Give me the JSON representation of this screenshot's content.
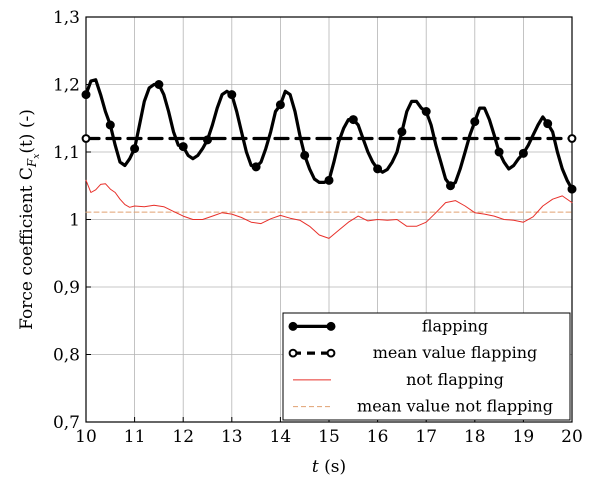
{
  "chart_data": {
    "type": "line",
    "xlabel": "t (s)",
    "ylabel": "Force coefficient C_{F_x}(t) (-)",
    "ylabel_parts": {
      "main": "Force coefficient C",
      "sub": "F",
      "subsub": "x",
      "tail": "(t) (-)"
    },
    "xlabel_parts": {
      "var": "t",
      "unit": " (s)"
    },
    "xlim": [
      10,
      20
    ],
    "ylim": [
      0.7,
      1.3
    ],
    "x_ticks": [
      10,
      11,
      12,
      13,
      14,
      15,
      16,
      17,
      18,
      19,
      20
    ],
    "x_tick_labels": [
      "10",
      "11",
      "12",
      "13",
      "14",
      "15",
      "16",
      "17",
      "18",
      "19",
      "20"
    ],
    "y_ticks": [
      0.7,
      0.8,
      0.9,
      1.0,
      1.1,
      1.2,
      1.3
    ],
    "y_tick_labels": [
      "0,7",
      "0,8",
      "0,9",
      "1",
      "1,1",
      "1,2",
      "1,3"
    ],
    "grid": true,
    "legend_position": "bottom-right",
    "series": [
      {
        "name": "flapping",
        "color": "#000000",
        "style": "solid-thick-filled-markers",
        "x": [
          10.0,
          10.1,
          10.2,
          10.3,
          10.4,
          10.5,
          10.6,
          10.7,
          10.8,
          10.9,
          11.0,
          11.1,
          11.2,
          11.3,
          11.4,
          11.5,
          11.6,
          11.7,
          11.8,
          11.9,
          12.0,
          12.1,
          12.2,
          12.3,
          12.4,
          12.5,
          12.6,
          12.7,
          12.8,
          12.9,
          13.0,
          13.1,
          13.2,
          13.3,
          13.4,
          13.5,
          13.6,
          13.7,
          13.8,
          13.9,
          14.0,
          14.1,
          14.2,
          14.3,
          14.4,
          14.5,
          14.6,
          14.7,
          14.8,
          14.9,
          15.0,
          15.1,
          15.2,
          15.3,
          15.4,
          15.5,
          15.6,
          15.7,
          15.8,
          15.9,
          16.0,
          16.1,
          16.2,
          16.3,
          16.4,
          16.5,
          16.6,
          16.7,
          16.8,
          16.9,
          17.0,
          17.1,
          17.2,
          17.3,
          17.4,
          17.5,
          17.6,
          17.7,
          17.8,
          17.9,
          18.0,
          18.1,
          18.2,
          18.3,
          18.4,
          18.5,
          18.6,
          18.7,
          18.8,
          18.9,
          19.0,
          19.1,
          19.2,
          19.3,
          19.4,
          19.5,
          19.6,
          19.7,
          19.8,
          19.9,
          20.0
        ],
        "y": [
          1.185,
          1.205,
          1.207,
          1.185,
          1.16,
          1.14,
          1.11,
          1.085,
          1.08,
          1.09,
          1.105,
          1.14,
          1.175,
          1.195,
          1.2,
          1.2,
          1.185,
          1.16,
          1.13,
          1.11,
          1.108,
          1.095,
          1.09,
          1.095,
          1.105,
          1.118,
          1.14,
          1.165,
          1.185,
          1.19,
          1.185,
          1.16,
          1.13,
          1.1,
          1.08,
          1.078,
          1.085,
          1.105,
          1.13,
          1.16,
          1.17,
          1.19,
          1.185,
          1.16,
          1.125,
          1.095,
          1.075,
          1.06,
          1.055,
          1.055,
          1.058,
          1.085,
          1.115,
          1.135,
          1.148,
          1.148,
          1.14,
          1.12,
          1.1,
          1.085,
          1.075,
          1.07,
          1.074,
          1.085,
          1.1,
          1.13,
          1.16,
          1.175,
          1.175,
          1.165,
          1.16,
          1.14,
          1.11,
          1.085,
          1.06,
          1.05,
          1.055,
          1.075,
          1.1,
          1.125,
          1.145,
          1.165,
          1.165,
          1.148,
          1.125,
          1.1,
          1.085,
          1.075,
          1.08,
          1.09,
          1.098,
          1.11,
          1.125,
          1.14,
          1.152,
          1.142,
          1.13,
          1.1,
          1.075,
          1.058,
          1.045
        ],
        "markers": [
          [
            10.0,
            1.185
          ],
          [
            10.5,
            1.14
          ],
          [
            11.0,
            1.105
          ],
          [
            11.5,
            1.2
          ],
          [
            12.0,
            1.108
          ],
          [
            12.5,
            1.118
          ],
          [
            13.0,
            1.185
          ],
          [
            13.5,
            1.078
          ],
          [
            14.0,
            1.17
          ],
          [
            14.5,
            1.095
          ],
          [
            15.0,
            1.058
          ],
          [
            15.5,
            1.148
          ],
          [
            16.0,
            1.075
          ],
          [
            16.5,
            1.13
          ],
          [
            17.0,
            1.16
          ],
          [
            17.5,
            1.05
          ],
          [
            18.0,
            1.145
          ],
          [
            18.5,
            1.1
          ],
          [
            19.0,
            1.098
          ],
          [
            19.5,
            1.142
          ],
          [
            20.0,
            1.045
          ]
        ]
      },
      {
        "name": "mean value flapping",
        "color": "#000000",
        "style": "dashed-thick-open-markers",
        "x": [
          10,
          20
        ],
        "y": [
          1.12,
          1.12
        ],
        "markers": [
          [
            10,
            1.12
          ],
          [
            20,
            1.12
          ]
        ]
      },
      {
        "name": "not flapping",
        "color": "#e8302a",
        "style": "solid-thin",
        "x": [
          10.0,
          10.1,
          10.2,
          10.3,
          10.4,
          10.5,
          10.6,
          10.7,
          10.8,
          10.9,
          11.0,
          11.2,
          11.4,
          11.6,
          11.8,
          12.0,
          12.2,
          12.4,
          12.6,
          12.8,
          13.0,
          13.2,
          13.4,
          13.6,
          13.8,
          14.0,
          14.2,
          14.4,
          14.6,
          14.8,
          15.0,
          15.2,
          15.4,
          15.6,
          15.8,
          16.0,
          16.2,
          16.4,
          16.6,
          16.8,
          17.0,
          17.2,
          17.4,
          17.6,
          17.8,
          18.0,
          18.2,
          18.4,
          18.6,
          18.8,
          19.0,
          19.2,
          19.4,
          19.6,
          19.8,
          20.0
        ],
        "y": [
          1.058,
          1.04,
          1.044,
          1.052,
          1.053,
          1.045,
          1.04,
          1.03,
          1.022,
          1.018,
          1.02,
          1.019,
          1.021,
          1.019,
          1.012,
          1.005,
          1.0,
          1.0,
          1.005,
          1.01,
          1.008,
          1.003,
          0.996,
          0.994,
          1.001,
          1.006,
          1.002,
          0.999,
          0.99,
          0.977,
          0.972,
          0.984,
          0.996,
          1.005,
          0.998,
          1.0,
          0.999,
          1.0,
          0.99,
          0.99,
          0.996,
          1.01,
          1.025,
          1.028,
          1.02,
          1.01,
          1.008,
          1.005,
          1.0,
          0.999,
          0.996,
          1.004,
          1.02,
          1.03,
          1.035,
          1.025
        ],
        "markers": []
      },
      {
        "name": "mean value not flapping",
        "color": "#e0a070",
        "style": "dashed-thin",
        "x": [
          10,
          20
        ],
        "y": [
          1.011,
          1.011
        ],
        "markers": []
      }
    ]
  }
}
